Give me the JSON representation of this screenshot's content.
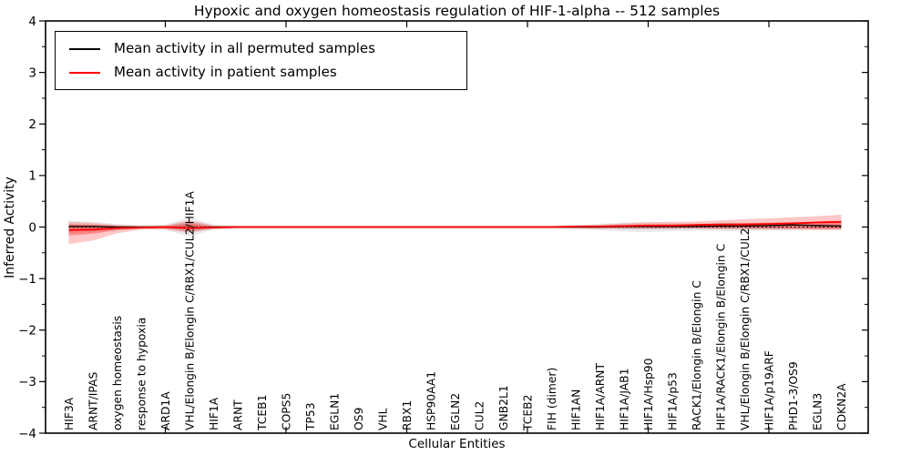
{
  "figure": {
    "xlabel": "Cellular Entities",
    "ylabel": "Inferred Activity"
  },
  "chart_data": {
    "type": "line",
    "title": "Hypoxic and oxygen homeostasis regulation of HIF-1-alpha -- 512 samples",
    "xlabel": "Cellular Entities",
    "ylabel": "Inferred Activity",
    "ylim": [
      -4,
      4
    ],
    "yticks": [
      4,
      3,
      2,
      1,
      0,
      -1,
      -2,
      -3,
      -4
    ],
    "xtick_major_positions": [
      5,
      10,
      15,
      20,
      25,
      30
    ],
    "grid": false,
    "legend_position": "upper left",
    "zero_reference_line": 0,
    "categories": [
      "HIF3A",
      "ARNT/IPAS",
      "oxygen homeostasis",
      "response to hypoxia",
      "ARD1A",
      "VHL/Elongin B/Elongin C/RBX1/CUL2/HIF1A",
      "HIF1A",
      "ARNT",
      "TCEB1",
      "COPS5",
      "TP53",
      "EGLN1",
      "OS9",
      "VHL",
      "RBX1",
      "HSP90AA1",
      "EGLN2",
      "CUL2",
      "GNB2L1",
      "TCEB2",
      "FIH (dimer)",
      "HIF1AN",
      "HIF1A/ARNT",
      "HIF1A/JAB1",
      "HIF1A/Hsp90",
      "HIF1A/p53",
      "RACK1/Elongin B/Elongin C",
      "HIF1A/RACK1/Elongin B/Elongin C",
      "VHL/Elongin B/Elongin C/RBX1/CUL2",
      "HIF1A/p19ARF",
      "PHD1-3/OS9",
      "EGLN3",
      "CDKN2A"
    ],
    "series": [
      {
        "name": "Mean activity in all permuted samples",
        "color": "#000000",
        "values": [
          0.01,
          0.01,
          0.0,
          0.0,
          0.0,
          -0.02,
          0.0,
          0.0,
          0.0,
          0.0,
          0.0,
          0.0,
          0.0,
          0.0,
          0.0,
          0.0,
          0.0,
          0.0,
          0.0,
          0.0,
          0.0,
          0.0,
          0.0,
          0.01,
          0.01,
          0.01,
          0.01,
          0.02,
          0.02,
          0.03,
          0.04,
          0.03,
          0.02
        ]
      },
      {
        "name": "Mean activity in patient samples",
        "color": "#ff0000",
        "values": [
          -0.06,
          -0.05,
          -0.02,
          -0.01,
          0.0,
          -0.02,
          -0.01,
          0.0,
          0.0,
          0.0,
          0.0,
          0.0,
          0.0,
          0.0,
          0.0,
          0.0,
          0.0,
          0.0,
          0.0,
          0.0,
          0.0,
          0.01,
          0.01,
          0.02,
          0.03,
          0.03,
          0.04,
          0.05,
          0.05,
          0.06,
          0.07,
          0.09,
          0.1
        ]
      }
    ],
    "bands": [
      {
        "name": "permuted samples spread",
        "color": "#909090",
        "hi": [
          0.12,
          0.1,
          0.06,
          0.04,
          0.05,
          0.19,
          0.05,
          0.03,
          0.03,
          0.03,
          0.03,
          0.03,
          0.03,
          0.03,
          0.03,
          0.03,
          0.03,
          0.03,
          0.03,
          0.03,
          0.03,
          0.04,
          0.06,
          0.09,
          0.1,
          0.08,
          0.07,
          0.08,
          0.08,
          0.08,
          0.09,
          0.08,
          0.07
        ],
        "lo": [
          -0.12,
          -0.1,
          -0.06,
          -0.04,
          -0.05,
          -0.19,
          -0.05,
          -0.03,
          -0.03,
          -0.03,
          -0.03,
          -0.03,
          -0.03,
          -0.03,
          -0.03,
          -0.03,
          -0.03,
          -0.03,
          -0.03,
          -0.03,
          -0.03,
          -0.04,
          -0.06,
          -0.09,
          -0.1,
          -0.08,
          -0.07,
          -0.08,
          -0.08,
          -0.07,
          -0.06,
          -0.05,
          -0.05
        ]
      },
      {
        "name": "patient samples spread",
        "color": "#ff0000",
        "hi": [
          0.1,
          0.08,
          0.04,
          0.02,
          0.03,
          0.13,
          0.03,
          0.02,
          0.02,
          0.02,
          0.02,
          0.02,
          0.02,
          0.02,
          0.02,
          0.02,
          0.02,
          0.02,
          0.02,
          0.02,
          0.02,
          0.03,
          0.05,
          0.07,
          0.09,
          0.1,
          0.11,
          0.13,
          0.15,
          0.17,
          0.19,
          0.21,
          0.24
        ],
        "lo": [
          -0.33,
          -0.26,
          -0.12,
          -0.05,
          -0.05,
          -0.11,
          -0.04,
          -0.02,
          -0.02,
          -0.02,
          -0.02,
          -0.02,
          -0.02,
          -0.02,
          -0.02,
          -0.02,
          -0.02,
          -0.02,
          -0.02,
          -0.02,
          -0.02,
          -0.03,
          -0.03,
          -0.03,
          -0.03,
          -0.03,
          -0.03,
          -0.04,
          -0.04,
          -0.05,
          -0.05,
          -0.06,
          -0.06
        ]
      }
    ]
  }
}
